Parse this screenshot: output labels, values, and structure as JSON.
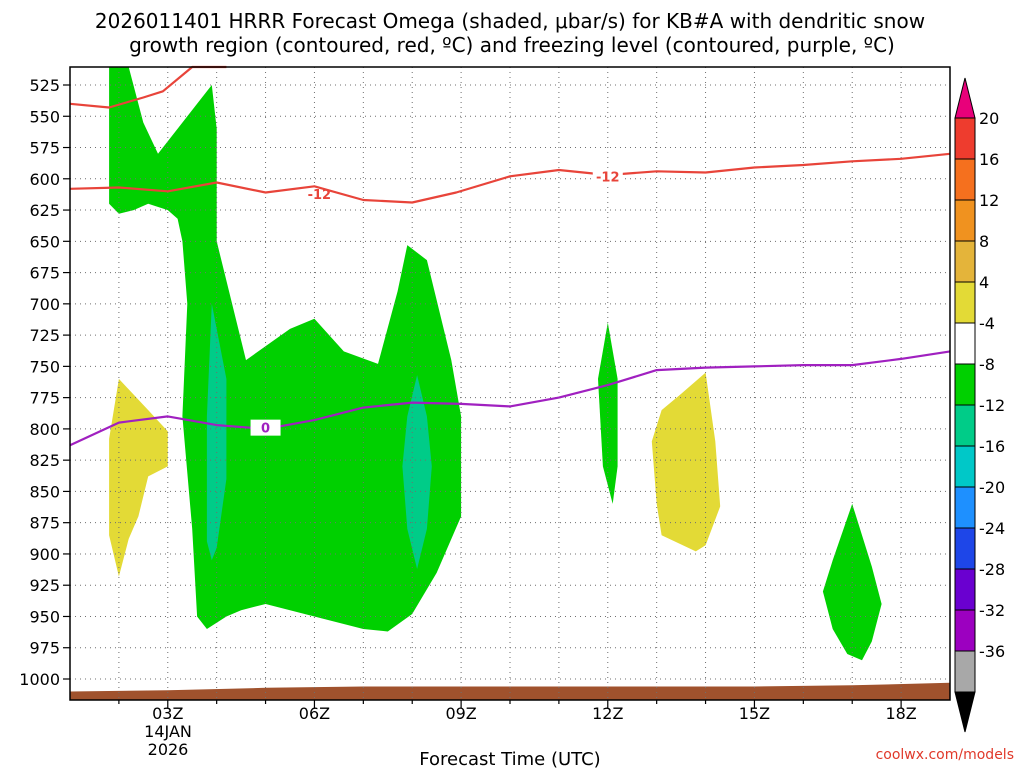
{
  "title": {
    "line1": "2026011401 HRRR Forecast Omega (shaded, μbar/s) for KB#A with dendritic snow",
    "line2": "growth region (contoured, red, ºC) and freezing level (contoured, purple, ºC)"
  },
  "credit": "coolwx.com/models",
  "chart_data": {
    "type": "heatmap",
    "title": "2026011401 HRRR Forecast Omega (shaded, μbar/s) for KB#A with dendritic snow growth region (contoured, red, ºC) and freezing level (contoured, purple, ºC)",
    "xlabel": "Forecast Time (UTC)",
    "xlim": [
      1,
      19
    ],
    "x_ticks": [
      {
        "x": 3,
        "label": "03Z"
      },
      {
        "x": 6,
        "label": "06Z"
      },
      {
        "x": 9,
        "label": "09Z"
      },
      {
        "x": 12,
        "label": "12Z"
      },
      {
        "x": 15,
        "label": "15Z"
      },
      {
        "x": 18,
        "label": "18Z"
      }
    ],
    "date_label": [
      "14JAN",
      "2026"
    ],
    "ylim": [
      510,
      1015
    ],
    "y_ticks": [
      525,
      550,
      575,
      600,
      625,
      650,
      675,
      700,
      725,
      750,
      775,
      800,
      825,
      850,
      875,
      900,
      925,
      950,
      975,
      1000
    ],
    "grid": true,
    "colorbar": {
      "labels": [
        20,
        16,
        12,
        8,
        4,
        -4,
        -8,
        -12,
        -16,
        -20,
        -24,
        -28,
        -32,
        -36
      ],
      "bins": [
        {
          "color": "#e8007a"
        },
        {
          "color": "#ee3c2e"
        },
        {
          "color": "#f5701e"
        },
        {
          "color": "#f0921f"
        },
        {
          "color": "#e4b43a"
        },
        {
          "color": "#e3da36"
        },
        {
          "color": "#ffffff"
        },
        {
          "color": "#00d000"
        },
        {
          "color": "#00cc88"
        },
        {
          "color": "#00c8c8"
        },
        {
          "color": "#1e90ff"
        },
        {
          "color": "#1e46e8"
        },
        {
          "color": "#6a00d0"
        },
        {
          "color": "#9c00c0"
        },
        {
          "color": "#a8a8a8"
        },
        {
          "color": "#000000"
        }
      ]
    },
    "omega_regions": [
      {
        "color": "#00d000",
        "points": [
          [
            1.8,
            500
          ],
          [
            2.2,
            500
          ],
          [
            2.5,
            555
          ],
          [
            2.8,
            580
          ],
          [
            3.6,
            540
          ],
          [
            3.9,
            525
          ],
          [
            4.0,
            560
          ],
          [
            4.0,
            650
          ],
          [
            4.6,
            745
          ],
          [
            5.5,
            720
          ],
          [
            6.0,
            712
          ],
          [
            6.6,
            738
          ],
          [
            7.3,
            748
          ],
          [
            7.7,
            690
          ],
          [
            7.9,
            653
          ],
          [
            8.3,
            665
          ],
          [
            8.8,
            745
          ],
          [
            9.0,
            790
          ],
          [
            9.0,
            870
          ],
          [
            8.5,
            915
          ],
          [
            8.0,
            948
          ],
          [
            7.5,
            962
          ],
          [
            7.0,
            960
          ],
          [
            6.0,
            950
          ],
          [
            5.0,
            940
          ],
          [
            4.5,
            945
          ],
          [
            4.2,
            950
          ],
          [
            3.8,
            960
          ],
          [
            3.6,
            950
          ],
          [
            3.5,
            880
          ],
          [
            3.3,
            790
          ],
          [
            3.4,
            700
          ],
          [
            3.3,
            650
          ],
          [
            3.2,
            632
          ],
          [
            3.0,
            625
          ],
          [
            2.6,
            620
          ],
          [
            2.3,
            625
          ],
          [
            2.0,
            628
          ],
          [
            1.8,
            620
          ],
          [
            1.8,
            570
          ]
        ]
      },
      {
        "color": "#00d000",
        "points": [
          [
            12.0,
            715
          ],
          [
            12.2,
            760
          ],
          [
            12.2,
            830
          ],
          [
            12.1,
            860
          ],
          [
            11.9,
            830
          ],
          [
            11.8,
            760
          ]
        ]
      },
      {
        "color": "#00d000",
        "points": [
          [
            17.0,
            860
          ],
          [
            17.4,
            910
          ],
          [
            17.6,
            940
          ],
          [
            17.4,
            970
          ],
          [
            17.2,
            985
          ],
          [
            16.9,
            980
          ],
          [
            16.6,
            960
          ],
          [
            16.4,
            930
          ],
          [
            16.6,
            905
          ]
        ]
      },
      {
        "color": "#00cc88",
        "points": [
          [
            3.9,
            700
          ],
          [
            4.2,
            760
          ],
          [
            4.2,
            840
          ],
          [
            4.0,
            895
          ],
          [
            3.9,
            905
          ],
          [
            3.8,
            890
          ],
          [
            3.8,
            790
          ]
        ]
      },
      {
        "color": "#00cc88",
        "points": [
          [
            8.1,
            757
          ],
          [
            8.3,
            790
          ],
          [
            8.4,
            830
          ],
          [
            8.3,
            880
          ],
          [
            8.1,
            912
          ],
          [
            7.9,
            880
          ],
          [
            7.8,
            830
          ],
          [
            7.9,
            790
          ]
        ]
      },
      {
        "color": "#e3da36",
        "points": [
          [
            2.0,
            760
          ],
          [
            2.6,
            785
          ],
          [
            3.0,
            802
          ],
          [
            3.0,
            830
          ],
          [
            2.6,
            838
          ],
          [
            2.4,
            870
          ],
          [
            2.2,
            888
          ],
          [
            2.0,
            918
          ],
          [
            1.8,
            885
          ],
          [
            1.8,
            808
          ]
        ]
      },
      {
        "color": "#e3da36",
        "points": [
          [
            14.0,
            755
          ],
          [
            14.2,
            810
          ],
          [
            14.3,
            862
          ],
          [
            14.0,
            893
          ],
          [
            13.8,
            898
          ],
          [
            13.1,
            885
          ],
          [
            13.0,
            860
          ],
          [
            12.9,
            810
          ],
          [
            13.1,
            785
          ],
          [
            13.5,
            772
          ]
        ]
      }
    ],
    "contours": [
      {
        "kind": "dendritic",
        "color": "#e8443a",
        "label": "-12",
        "label_at": [
          6.1,
          612
        ],
        "points": [
          [
            1,
            540
          ],
          [
            1.8,
            543
          ],
          [
            2.5,
            535
          ],
          [
            2.9,
            530
          ],
          [
            3.5,
            510
          ],
          [
            4.2,
            500
          ]
        ]
      },
      {
        "kind": "dendritic",
        "color": "#e8443a",
        "label": "-12",
        "label_at": [
          12.0,
          598
        ],
        "points": [
          [
            1,
            608
          ],
          [
            2,
            607
          ],
          [
            3,
            610
          ],
          [
            4,
            603
          ],
          [
            5,
            611
          ],
          [
            6,
            606
          ],
          [
            7,
            617
          ],
          [
            8,
            619
          ],
          [
            8.9,
            611
          ],
          [
            10,
            598
          ],
          [
            11,
            593
          ],
          [
            12,
            597
          ],
          [
            13,
            594
          ],
          [
            14,
            595
          ],
          [
            15,
            591
          ],
          [
            16,
            589
          ],
          [
            17,
            586
          ],
          [
            18,
            584
          ],
          [
            19,
            580
          ]
        ]
      },
      {
        "kind": "freezing",
        "color": "#a020c0",
        "label": "0",
        "label_at": [
          5.0,
          799
        ],
        "points": [
          [
            1,
            813
          ],
          [
            2,
            795
          ],
          [
            3,
            790
          ],
          [
            4,
            797
          ],
          [
            5,
            800
          ],
          [
            6,
            793
          ],
          [
            7,
            783
          ],
          [
            8,
            779
          ],
          [
            9,
            780
          ],
          [
            10,
            782
          ],
          [
            11,
            775
          ],
          [
            12,
            765
          ],
          [
            13,
            753
          ],
          [
            14,
            751
          ],
          [
            15,
            750
          ],
          [
            16,
            749
          ],
          [
            17,
            749
          ],
          [
            18,
            744
          ],
          [
            19,
            738
          ]
        ]
      }
    ],
    "ground": {
      "color": "#a0522d",
      "top": [
        [
          1,
          1010
        ],
        [
          3,
          1009
        ],
        [
          5,
          1007
        ],
        [
          7,
          1006
        ],
        [
          9,
          1006
        ],
        [
          11,
          1006
        ],
        [
          13,
          1006
        ],
        [
          15,
          1006
        ],
        [
          17,
          1005
        ],
        [
          19,
          1003
        ]
      ]
    }
  }
}
